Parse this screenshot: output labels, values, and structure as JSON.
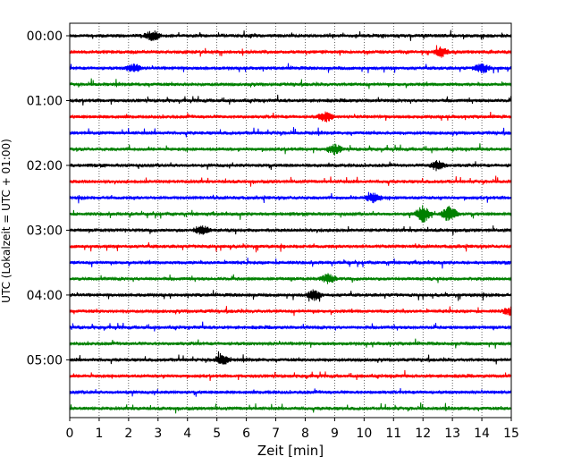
{
  "chart_data": {
    "type": "line",
    "subtype": "helicorder",
    "title": "",
    "xlabel": "Zeit  [min]",
    "ylabel": "UTC (Lokalzeit = UTC + 01:00)",
    "xlim": [
      0,
      15
    ],
    "x_ticks": [
      0,
      1,
      2,
      3,
      4,
      5,
      6,
      7,
      8,
      9,
      10,
      11,
      12,
      13,
      14,
      15
    ],
    "y_tick_labels": [
      "00:00",
      "01:00",
      "02:00",
      "03:00",
      "04:00",
      "05:00"
    ],
    "y_tick_trace_index": [
      0,
      4,
      8,
      12,
      16,
      20
    ],
    "minutes_per_trace": 15,
    "trace_count": 24,
    "trace_colors": [
      "#000000",
      "#ff0000",
      "#0000ff",
      "#008000"
    ],
    "grid": "vertical dotted",
    "events": [
      {
        "trace": 0,
        "minute": 2.8,
        "amplitude": "medium"
      },
      {
        "trace": 1,
        "minute": 12.6,
        "amplitude": "medium"
      },
      {
        "trace": 2,
        "minute": 2.2,
        "amplitude": "medium"
      },
      {
        "trace": 2,
        "minute": 14.0,
        "amplitude": "medium"
      },
      {
        "trace": 5,
        "minute": 8.7,
        "amplitude": "medium"
      },
      {
        "trace": 7,
        "minute": 9.0,
        "amplitude": "medium"
      },
      {
        "trace": 8,
        "minute": 12.5,
        "amplitude": "medium"
      },
      {
        "trace": 10,
        "minute": 10.3,
        "amplitude": "medium"
      },
      {
        "trace": 11,
        "minute": 12.0,
        "amplitude": "large"
      },
      {
        "trace": 11,
        "minute": 12.9,
        "amplitude": "large"
      },
      {
        "trace": 12,
        "minute": 4.5,
        "amplitude": "medium"
      },
      {
        "trace": 15,
        "minute": 8.8,
        "amplitude": "medium"
      },
      {
        "trace": 16,
        "minute": 8.3,
        "amplitude": "medium"
      },
      {
        "trace": 17,
        "minute": 15.0,
        "amplitude": "medium"
      },
      {
        "trace": 20,
        "minute": 5.2,
        "amplitude": "medium"
      }
    ]
  }
}
